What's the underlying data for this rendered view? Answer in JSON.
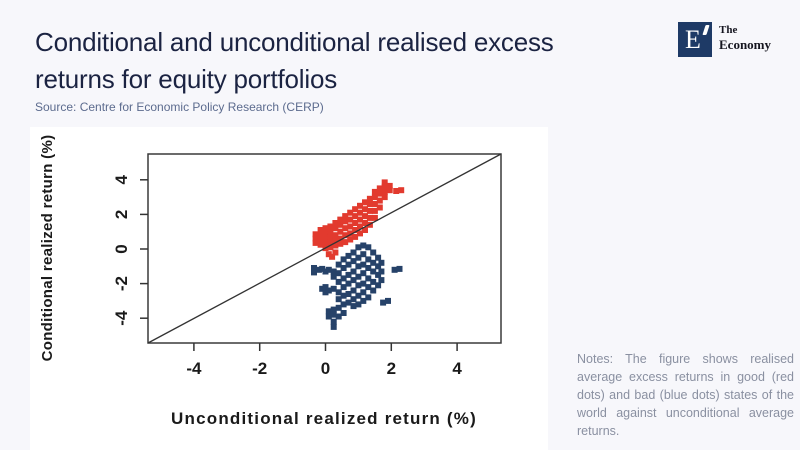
{
  "header": {
    "title_line1": "Conditional and unconditional realised excess",
    "title_line2": "returns for equity portfolios",
    "source": "Source: Centre for Economic Policy Research (CERP)"
  },
  "logo": {
    "letter": "E",
    "name_line1": "The",
    "name_line2": "Economy",
    "square_color": "#1e3a66"
  },
  "notes": {
    "text": "Notes: The figure shows realised average excess returns in good (red dots) and bad (blue dots) states of the world against unconditional average returns."
  },
  "chart_data": {
    "type": "scatter",
    "xlabel": "Unconditional realized return (%)",
    "ylabel": "Conditional realized return (%)",
    "xlim": [
      -5.4,
      5.4
    ],
    "ylim": [
      -5.5,
      5.5
    ],
    "x_ticks": [
      -4,
      -2,
      0,
      2,
      4
    ],
    "y_ticks": [
      -4,
      -2,
      0,
      2,
      4
    ],
    "identity_line": true,
    "grid": false,
    "marker": "square",
    "series": [
      {
        "name": "bad states (blue dots)",
        "color": "#264269",
        "points": [
          [
            -0.35,
            -1.1
          ],
          [
            -0.35,
            -1.35
          ],
          [
            -0.2,
            -1.2
          ],
          [
            -0.1,
            -1.15
          ],
          [
            -0.1,
            -2.3
          ],
          [
            0,
            -1.3
          ],
          [
            0,
            -2.2
          ],
          [
            0,
            -2.5
          ],
          [
            0.1,
            -1.2
          ],
          [
            0.1,
            -2.4
          ],
          [
            0.1,
            -3.6
          ],
          [
            0.1,
            -3.9
          ],
          [
            0.25,
            -1.3
          ],
          [
            0.25,
            -1.6
          ],
          [
            0.25,
            -2.3
          ],
          [
            0.25,
            -3.5
          ],
          [
            0.25,
            -3.8
          ],
          [
            0.25,
            -4.2
          ],
          [
            0.25,
            -4.5
          ],
          [
            0.4,
            -0.9
          ],
          [
            0.4,
            -1.4
          ],
          [
            0.4,
            -1.9
          ],
          [
            0.4,
            -2.5
          ],
          [
            0.4,
            -2.9
          ],
          [
            0.4,
            -3.4
          ],
          [
            0.4,
            -3.9
          ],
          [
            0.55,
            -0.6
          ],
          [
            0.55,
            -1.1
          ],
          [
            0.55,
            -1.7
          ],
          [
            0.55,
            -2.2
          ],
          [
            0.55,
            -2.7
          ],
          [
            0.55,
            -3.2
          ],
          [
            0.55,
            -3.7
          ],
          [
            0.7,
            -0.4
          ],
          [
            0.7,
            -0.9
          ],
          [
            0.7,
            -1.5
          ],
          [
            0.7,
            -2.0
          ],
          [
            0.7,
            -2.6
          ],
          [
            0.7,
            -3.1
          ],
          [
            0.85,
            -0.2
          ],
          [
            0.85,
            -0.7
          ],
          [
            0.85,
            -1.3
          ],
          [
            0.85,
            -1.8
          ],
          [
            0.85,
            -2.4
          ],
          [
            0.85,
            -2.9
          ],
          [
            0.85,
            -3.3
          ],
          [
            1.0,
            0.1
          ],
          [
            1.0,
            -0.5
          ],
          [
            1.0,
            -1.0
          ],
          [
            1.0,
            -1.6
          ],
          [
            1.0,
            -2.1
          ],
          [
            1.0,
            -2.7
          ],
          [
            1.0,
            -3.2
          ],
          [
            1.15,
            0.2
          ],
          [
            1.15,
            -0.3
          ],
          [
            1.15,
            -0.9
          ],
          [
            1.15,
            -1.4
          ],
          [
            1.15,
            -2.0
          ],
          [
            1.15,
            -2.5
          ],
          [
            1.15,
            -3.0
          ],
          [
            1.3,
            0.1
          ],
          [
            1.3,
            -0.6
          ],
          [
            1.3,
            -1.1
          ],
          [
            1.3,
            -1.7
          ],
          [
            1.3,
            -2.2
          ],
          [
            1.3,
            -2.8
          ],
          [
            1.45,
            -0.2
          ],
          [
            1.45,
            -0.8
          ],
          [
            1.45,
            -1.3
          ],
          [
            1.45,
            -1.9
          ],
          [
            1.45,
            -2.4
          ],
          [
            1.6,
            -0.5
          ],
          [
            1.6,
            -1.0
          ],
          [
            1.6,
            -1.5
          ],
          [
            1.6,
            -2.1
          ],
          [
            1.7,
            -0.8
          ],
          [
            1.7,
            -1.3
          ],
          [
            1.7,
            -1.8
          ],
          [
            1.75,
            -3.1
          ],
          [
            1.9,
            -3.0
          ],
          [
            2.1,
            -1.2
          ],
          [
            2.25,
            -1.15
          ]
        ]
      },
      {
        "name": "good states (red dots)",
        "color": "#e23a2e",
        "points": [
          [
            -0.3,
            0.35
          ],
          [
            -0.3,
            0.6
          ],
          [
            -0.3,
            0.85
          ],
          [
            -0.15,
            0.25
          ],
          [
            -0.15,
            0.5
          ],
          [
            -0.15,
            0.8
          ],
          [
            -0.15,
            1.1
          ],
          [
            0,
            0.05
          ],
          [
            0,
            0.3
          ],
          [
            0,
            0.6
          ],
          [
            0,
            0.9
          ],
          [
            0,
            1.2
          ],
          [
            0.1,
            -0.3
          ],
          [
            0.2,
            -0.45
          ],
          [
            0.3,
            -0.2
          ],
          [
            0.15,
            0.1
          ],
          [
            0.15,
            0.4
          ],
          [
            0.15,
            0.7
          ],
          [
            0.15,
            1.0
          ],
          [
            0.15,
            1.3
          ],
          [
            0.3,
            0.2
          ],
          [
            0.3,
            0.5
          ],
          [
            0.3,
            0.8
          ],
          [
            0.3,
            1.2
          ],
          [
            0.3,
            1.5
          ],
          [
            0.45,
            0.3
          ],
          [
            0.45,
            0.6
          ],
          [
            0.45,
            1.0
          ],
          [
            0.45,
            1.4
          ],
          [
            0.45,
            1.7
          ],
          [
            0.6,
            0.4
          ],
          [
            0.6,
            0.8
          ],
          [
            0.6,
            1.2
          ],
          [
            0.6,
            1.6
          ],
          [
            0.6,
            1.9
          ],
          [
            0.75,
            0.55
          ],
          [
            0.75,
            0.9
          ],
          [
            0.75,
            1.3
          ],
          [
            0.75,
            1.7
          ],
          [
            0.75,
            2.1
          ],
          [
            0.9,
            0.7
          ],
          [
            0.9,
            1.1
          ],
          [
            0.9,
            1.5
          ],
          [
            0.9,
            1.9
          ],
          [
            0.9,
            2.3
          ],
          [
            1.05,
            0.9
          ],
          [
            1.05,
            1.3
          ],
          [
            1.05,
            1.7
          ],
          [
            1.05,
            2.1
          ],
          [
            1.05,
            2.5
          ],
          [
            1.2,
            1.1
          ],
          [
            1.2,
            1.5
          ],
          [
            1.2,
            1.9
          ],
          [
            1.2,
            2.3
          ],
          [
            1.2,
            2.7
          ],
          [
            1.35,
            1.4
          ],
          [
            1.35,
            1.8
          ],
          [
            1.35,
            2.2
          ],
          [
            1.35,
            2.6
          ],
          [
            1.35,
            2.9
          ],
          [
            1.5,
            1.8
          ],
          [
            1.5,
            2.2
          ],
          [
            1.5,
            2.6
          ],
          [
            1.5,
            3.0
          ],
          [
            1.5,
            3.3
          ],
          [
            1.65,
            2.4
          ],
          [
            1.65,
            2.8
          ],
          [
            1.65,
            3.2
          ],
          [
            1.65,
            3.5
          ],
          [
            1.8,
            3.0
          ],
          [
            1.8,
            3.3
          ],
          [
            1.8,
            3.6
          ],
          [
            1.8,
            3.85
          ],
          [
            1.95,
            3.4
          ],
          [
            1.95,
            3.65
          ],
          [
            2.15,
            3.35
          ],
          [
            2.3,
            3.4
          ]
        ]
      }
    ]
  }
}
